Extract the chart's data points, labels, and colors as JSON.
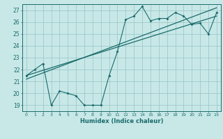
{
  "xlabel": "Humidex (Indice chaleur)",
  "bg_color": "#c8e8e8",
  "grid_color": "#a0c8c8",
  "line_color": "#1a6b6b",
  "xlim": [
    -0.5,
    23.5
  ],
  "ylim": [
    18.5,
    27.5
  ],
  "xticks": [
    0,
    1,
    2,
    3,
    4,
    5,
    6,
    7,
    8,
    9,
    10,
    11,
    12,
    13,
    14,
    15,
    16,
    17,
    18,
    19,
    20,
    21,
    22,
    23
  ],
  "yticks": [
    19,
    20,
    21,
    22,
    23,
    24,
    25,
    26,
    27
  ],
  "series1_x": [
    0,
    1,
    2,
    3,
    4,
    5,
    6,
    7,
    8,
    9,
    10,
    11,
    12,
    13,
    14,
    15,
    16,
    17,
    18,
    19,
    20,
    21,
    22,
    23
  ],
  "series1_y": [
    21.5,
    22.0,
    22.5,
    19.0,
    20.2,
    20.0,
    19.8,
    19.0,
    19.0,
    19.0,
    21.5,
    23.5,
    26.2,
    26.5,
    27.3,
    26.1,
    26.3,
    26.3,
    26.8,
    26.5,
    25.8,
    25.9,
    25.0,
    26.8
  ],
  "series2_x": [
    0,
    23
  ],
  "series2_y": [
    21.5,
    26.5
  ],
  "series3_x": [
    0,
    23
  ],
  "series3_y": [
    21.2,
    27.2
  ]
}
